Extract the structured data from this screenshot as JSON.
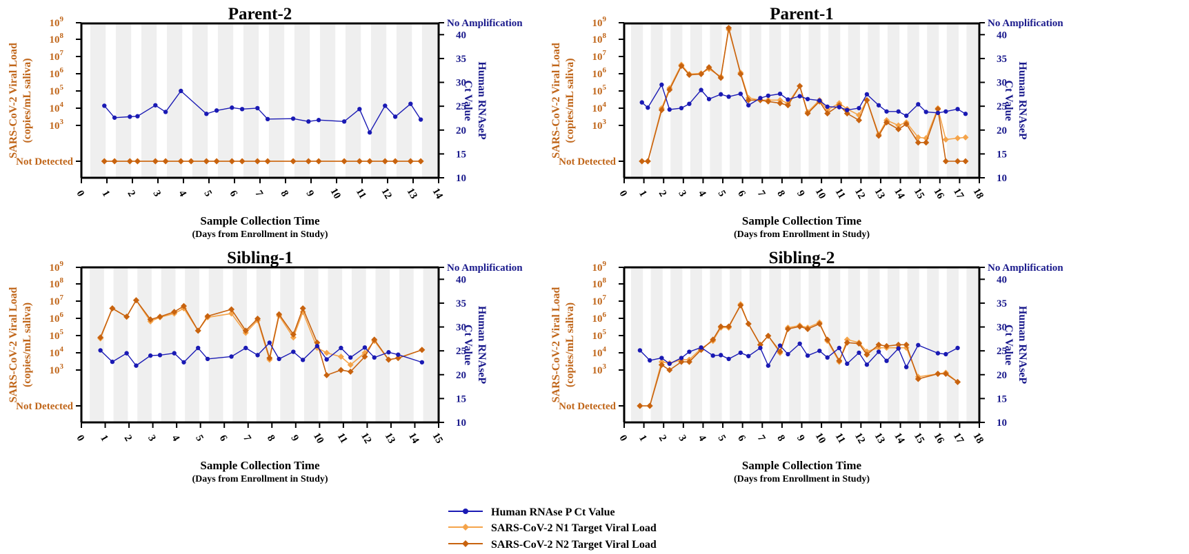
{
  "colors": {
    "rnase": "#1a1ab4",
    "n1": "#f5a44a",
    "n2": "#c8630f",
    "left_axis_text": "#c0661a",
    "right_axis_text": "#1a1a8c",
    "band": "#efefef"
  },
  "axis_text": {
    "left_label_line1": "SARS-CoV-2 Viral Load",
    "left_label_line2": "(copies/mL saliva)",
    "right_label_line1": "Human RNAseP",
    "right_label_line2": "Ct Value",
    "not_detected": "Not Detected",
    "no_amplification": "No Amplification",
    "x_label": "Sample Collection Time",
    "x_sublabel": "(Days from Enrollment in Study)",
    "log_tick_base": "10",
    "log_tick_exponents": [
      "3",
      "4",
      "5",
      "6",
      "7",
      "8",
      "9"
    ],
    "ct_ticks": [
      "10",
      "15",
      "20",
      "25",
      "30",
      "35",
      "40"
    ]
  },
  "legend": [
    {
      "key": "rnase",
      "label": "Human RNAse P Ct Value"
    },
    {
      "key": "n1",
      "label": "SARS-CoV-2 N1 Target Viral Load"
    },
    {
      "key": "n2",
      "label": "SARS-CoV-2 N2 Target Viral Load"
    }
  ],
  "chart_data": [
    {
      "type": "line",
      "title": "Parent-2",
      "xlim": [
        0,
        14
      ],
      "xticks": [
        0,
        1,
        2,
        3,
        4,
        5,
        6,
        7,
        8,
        9,
        10,
        11,
        12,
        13,
        14
      ],
      "left_yscale": "log",
      "left_ylim": [
        "Not Detected",
        1000000000
      ],
      "right_ylim": [
        10,
        "No Amplification"
      ],
      "series": [
        {
          "name": "Human RNAse P Ct Value",
          "axis": "right",
          "x": [
            0.9,
            1.3,
            1.9,
            2.2,
            2.9,
            3.3,
            3.9,
            4.9,
            5.3,
            5.9,
            6.3,
            6.9,
            7.3,
            8.3,
            8.9,
            9.3,
            10.3,
            10.9,
            11.3,
            11.9,
            12.3,
            12.9,
            13.3
          ],
          "y": [
            25.1,
            22.6,
            22.8,
            22.9,
            25.2,
            23.8,
            28.2,
            23.4,
            24.1,
            24.7,
            24.4,
            24.6,
            22.3,
            22.4,
            21.8,
            22.1,
            21.8,
            24.4,
            19.5,
            25.1,
            22.8,
            25.5,
            22.2
          ]
        },
        {
          "name": "SARS-CoV-2 N1 Target Viral Load",
          "axis": "left",
          "x": [
            0.9,
            1.3,
            1.9,
            2.2,
            2.9,
            3.3,
            3.9,
            4.3,
            4.9,
            5.3,
            5.9,
            6.3,
            6.9,
            7.3,
            8.3,
            8.9,
            9.3,
            10.3,
            10.9,
            11.3,
            11.9,
            12.3,
            12.9,
            13.3
          ],
          "y": [
            "Not Detected",
            "Not Detected",
            "Not Detected",
            "Not Detected",
            "Not Detected",
            "Not Detected",
            "Not Detected",
            "Not Detected",
            "Not Detected",
            "Not Detected",
            "Not Detected",
            "Not Detected",
            "Not Detected",
            "Not Detected",
            "Not Detected",
            "Not Detected",
            "Not Detected",
            "Not Detected",
            "Not Detected",
            "Not Detected",
            "Not Detected",
            "Not Detected",
            "Not Detected",
            "Not Detected"
          ]
        },
        {
          "name": "SARS-CoV-2 N2 Target Viral Load",
          "axis": "left",
          "x": [
            0.9,
            1.3,
            1.9,
            2.2,
            2.9,
            3.3,
            3.9,
            4.3,
            4.9,
            5.3,
            5.9,
            6.3,
            6.9,
            7.3,
            8.3,
            8.9,
            9.3,
            10.3,
            10.9,
            11.3,
            11.9,
            12.3,
            12.9,
            13.3
          ],
          "y": [
            "Not Detected",
            "Not Detected",
            "Not Detected",
            "Not Detected",
            "Not Detected",
            "Not Detected",
            "Not Detected",
            "Not Detected",
            "Not Detected",
            "Not Detected",
            "Not Detected",
            "Not Detected",
            "Not Detected",
            "Not Detected",
            "Not Detected",
            "Not Detected",
            "Not Detected",
            "Not Detected",
            "Not Detected",
            "Not Detected",
            "Not Detected",
            "Not Detected",
            "Not Detected",
            "Not Detected"
          ]
        }
      ]
    },
    {
      "type": "line",
      "title": "Parent-1",
      "xlim": [
        0,
        18
      ],
      "xticks": [
        0,
        1,
        2,
        3,
        4,
        5,
        6,
        7,
        8,
        9,
        10,
        11,
        12,
        13,
        14,
        15,
        16,
        17,
        18
      ],
      "left_yscale": "log",
      "left_ylim": [
        "Not Detected",
        1000000000
      ],
      "right_ylim": [
        10,
        "No Amplification"
      ],
      "series": [
        {
          "name": "Human RNAse P Ct Value",
          "axis": "right",
          "x": [
            0.9,
            1.2,
            1.9,
            2.3,
            2.9,
            3.3,
            3.9,
            4.3,
            4.9,
            5.3,
            5.9,
            6.3,
            6.9,
            7.3,
            7.9,
            8.3,
            8.9,
            9.3,
            9.9,
            10.3,
            10.9,
            11.3,
            11.9,
            12.3,
            12.9,
            13.3,
            13.9,
            14.3,
            14.9,
            15.3,
            15.9,
            16.3,
            16.9,
            17.3
          ],
          "y": [
            25.8,
            24.7,
            29.5,
            24.3,
            24.6,
            25.5,
            28.4,
            26.5,
            27.5,
            27,
            27.6,
            25.2,
            26.7,
            27.2,
            27.6,
            26.4,
            27.1,
            26.5,
            26.2,
            24.9,
            24.8,
            24.2,
            24.6,
            27.5,
            25.2,
            23.9,
            23.9,
            23,
            25.4,
            23.8,
            23.6,
            23.9,
            24.4,
            23.4
          ]
        },
        {
          "name": "SARS-CoV-2 N1 Target Viral Load",
          "axis": "left",
          "x": [
            0.9,
            1.2,
            1.9,
            2.3,
            2.9,
            3.3,
            3.9,
            4.3,
            4.9,
            5.3,
            5.9,
            6.3,
            6.9,
            7.3,
            7.9,
            8.3,
            8.9,
            9.3,
            9.9,
            10.3,
            10.9,
            11.3,
            11.9,
            12.3,
            12.9,
            13.3,
            13.9,
            14.3,
            14.9,
            15.3,
            15.9,
            16.3,
            16.9,
            17.3
          ],
          "y": [
            "Not Detected",
            "Not Detected",
            10000,
            150000,
            3500000,
            1000000,
            1100000,
            2000000,
            700000,
            400000000,
            1200000,
            40000,
            30000,
            30000,
            30000,
            20000,
            200000,
            6000,
            30000,
            8000,
            20000,
            9000,
            4000,
            30000,
            300,
            2000,
            1000,
            1500,
            200,
            180,
            10000,
            150,
            180,
            200
          ]
        },
        {
          "name": "SARS-CoV-2 N2 Target Viral Load",
          "axis": "left",
          "x": [
            0.9,
            1.2,
            1.9,
            2.3,
            2.9,
            3.3,
            3.9,
            4.3,
            4.9,
            5.3,
            5.9,
            6.3,
            6.9,
            7.3,
            7.9,
            8.3,
            8.9,
            9.3,
            9.9,
            10.3,
            10.9,
            11.3,
            11.9,
            12.3,
            12.9,
            13.3,
            13.9,
            14.3,
            14.9,
            15.3,
            15.9,
            16.3,
            16.9,
            17.3
          ],
          "y": [
            "Not Detected",
            "Not Detected",
            8000,
            120000,
            3000000,
            900000,
            1000000,
            2500000,
            600000,
            500000000,
            1000000,
            30000,
            30000,
            25000,
            20000,
            15000,
            200000,
            5000,
            25000,
            5000,
            15000,
            5000,
            2000,
            30000,
            250,
            1500,
            600,
            1200,
            100,
            100,
            9000,
            "Not Detected",
            "Not Detected",
            "Not Detected"
          ]
        }
      ]
    },
    {
      "type": "line",
      "title": "Sibling-1",
      "xlim": [
        0,
        15
      ],
      "xticks": [
        0,
        1,
        2,
        3,
        4,
        5,
        6,
        7,
        8,
        9,
        10,
        11,
        12,
        13,
        14,
        15
      ],
      "left_yscale": "log",
      "left_ylim": [
        "Not Detected",
        1000000000
      ],
      "right_ylim": [
        10,
        "No Amplification"
      ],
      "series": [
        {
          "name": "Human RNAse P Ct Value",
          "axis": "right",
          "x": [
            0.8,
            1.3,
            1.9,
            2.3,
            2.9,
            3.3,
            3.9,
            4.3,
            4.9,
            5.3,
            6.3,
            6.9,
            7.4,
            7.9,
            8.3,
            8.9,
            9.3,
            9.9,
            10.3,
            10.9,
            11.3,
            11.9,
            12.3,
            12.9,
            13.3,
            14.3
          ],
          "y": [
            25.1,
            22.7,
            24.5,
            21.9,
            24,
            24.1,
            24.5,
            22.6,
            25.6,
            23.3,
            23.8,
            25.6,
            24.1,
            26.7,
            23.3,
            24.8,
            23.1,
            26,
            23.2,
            25.6,
            23.6,
            25.7,
            23.6,
            24.7,
            24.2,
            22.6
          ]
        },
        {
          "name": "SARS-CoV-2 N1 Target Viral Load",
          "axis": "left",
          "x": [
            0.8,
            1.3,
            1.9,
            2.3,
            2.9,
            3.3,
            3.9,
            4.3,
            4.9,
            5.3,
            6.3,
            6.9,
            7.4,
            7.9,
            8.3,
            8.9,
            9.3,
            9.9,
            10.3,
            10.9,
            11.3,
            11.9,
            12.3,
            12.9,
            13.3,
            14.3
          ],
          "y": [
            70000,
            4000000,
            1300000,
            12000000,
            700000,
            1200000,
            2000000,
            4000000,
            200000,
            1200000,
            2000000,
            150000,
            800000,
            4000,
            1500000,
            80000,
            2500000,
            20000,
            10000,
            6000,
            2000,
            10000,
            50000,
            4000,
            5000,
            15000
          ]
        },
        {
          "name": "SARS-CoV-2 N2 Target Viral Load",
          "axis": "left",
          "x": [
            0.8,
            1.3,
            1.9,
            2.3,
            2.9,
            3.3,
            3.9,
            4.3,
            4.9,
            5.3,
            6.3,
            6.9,
            7.4,
            7.9,
            8.3,
            8.9,
            9.3,
            9.9,
            10.3,
            10.9,
            11.3,
            11.9,
            12.3,
            12.9,
            13.3,
            14.3
          ],
          "y": [
            80000,
            4000000,
            1300000,
            12000000,
            900000,
            1300000,
            2500000,
            5500000,
            200000,
            1400000,
            3500000,
            200000,
            1000000,
            5000,
            1800000,
            120000,
            4000000,
            40000,
            500,
            1000,
            800,
            6000,
            60000,
            4000,
            5000,
            15000
          ]
        }
      ]
    },
    {
      "type": "line",
      "title": "Sibling-2",
      "xlim": [
        0,
        18
      ],
      "xticks": [
        0,
        1,
        2,
        3,
        4,
        5,
        6,
        7,
        8,
        9,
        10,
        11,
        12,
        13,
        14,
        15,
        16,
        17,
        18
      ],
      "left_yscale": "log",
      "left_ylim": [
        "Not Detected",
        1000000000
      ],
      "right_ylim": [
        10,
        "No Amplification"
      ],
      "series": [
        {
          "name": "Human RNAse P Ct Value",
          "axis": "right",
          "x": [
            0.8,
            1.3,
            1.9,
            2.3,
            2.9,
            3.3,
            3.9,
            4.5,
            4.9,
            5.3,
            5.9,
            6.3,
            6.9,
            7.3,
            7.9,
            8.3,
            8.9,
            9.3,
            9.9,
            10.3,
            10.9,
            11.3,
            11.9,
            12.3,
            12.9,
            13.3,
            13.9,
            14.3,
            14.9,
            15.9,
            16.3,
            16.9
          ],
          "y": [
            25.1,
            23,
            23.5,
            22.3,
            23.5,
            24.8,
            25.7,
            24,
            24.1,
            23.3,
            24.6,
            23.9,
            25.6,
            21.9,
            26.1,
            24.3,
            26.5,
            24,
            25,
            23.6,
            25.6,
            22.3,
            24.6,
            22.1,
            24.8,
            22.9,
            25.5,
            21.6,
            26.2,
            24.5,
            24.3,
            25.6
          ]
        },
        {
          "name": "SARS-CoV-2 N1 Target Viral Load",
          "axis": "left",
          "x": [
            0.8,
            1.3,
            1.9,
            2.3,
            2.9,
            3.3,
            3.9,
            4.5,
            4.9,
            5.3,
            5.9,
            6.3,
            6.9,
            7.3,
            7.9,
            8.3,
            8.9,
            9.3,
            9.9,
            10.3,
            10.9,
            11.3,
            11.9,
            12.3,
            12.9,
            13.3,
            13.9,
            14.3,
            14.9,
            15.9,
            16.3,
            16.9
          ],
          "y": [
            "Not Detected",
            "Not Detected",
            3000,
            2500,
            4000,
            4000,
            18000,
            50000,
            300000,
            300000,
            7000000,
            500000,
            30000,
            100000,
            10000,
            300000,
            400000,
            300000,
            600000,
            50000,
            3000,
            60000,
            40000,
            12000,
            20000,
            20000,
            20000,
            20000,
            400,
            600,
            700,
            200
          ]
        },
        {
          "name": "SARS-CoV-2 N2 Target Viral Load",
          "axis": "left",
          "x": [
            0.8,
            1.3,
            1.9,
            2.3,
            2.9,
            3.3,
            3.9,
            4.5,
            4.9,
            5.3,
            5.9,
            6.3,
            6.9,
            7.3,
            7.9,
            8.3,
            8.9,
            9.3,
            9.9,
            10.3,
            10.9,
            11.3,
            11.9,
            12.3,
            12.9,
            13.3,
            13.9,
            14.3,
            14.9,
            15.9,
            16.3,
            16.9
          ],
          "y": [
            "Not Detected",
            "Not Detected",
            2000,
            1000,
            3000,
            3000,
            15000,
            60000,
            350000,
            350000,
            6000000,
            500000,
            30000,
            100000,
            12000,
            250000,
            350000,
            250000,
            500000,
            60000,
            3500,
            40000,
            35000,
            8000,
            30000,
            25000,
            30000,
            30000,
            300,
            600,
            600,
            200
          ]
        }
      ]
    }
  ]
}
